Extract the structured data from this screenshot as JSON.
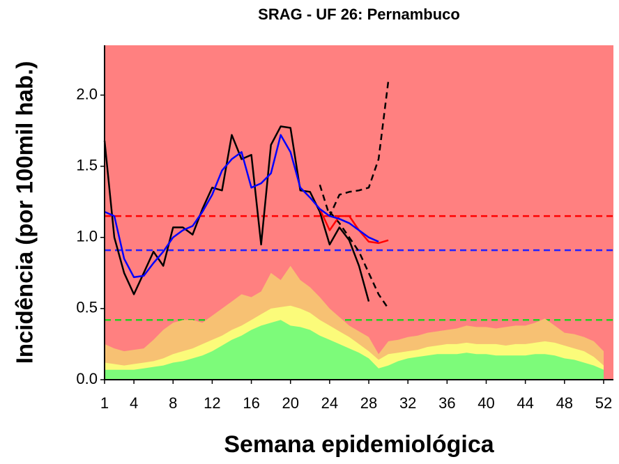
{
  "chart_data": {
    "type": "line",
    "title": "SRAG - UF 26: Pernambuco",
    "x_label": "Semana epidemiológica",
    "y_label": "Incidência (por 100mil hab.)",
    "background": "#ff8080",
    "xlim": [
      1,
      53
    ],
    "ylim": [
      0,
      2.35
    ],
    "xticks": [
      1,
      4,
      8,
      12,
      16,
      20,
      24,
      28,
      32,
      36,
      40,
      44,
      48,
      52
    ],
    "yticks": [
      {
        "value": 0,
        "label": "0.0"
      },
      0.5,
      {
        "value": 1,
        "label": "1.0"
      },
      1.5,
      {
        "value": 2,
        "label": "2.0"
      }
    ],
    "series": [
      {
        "style": "area",
        "color": "#f7c173",
        "x": [
          1,
          2,
          3,
          4,
          5,
          6,
          7,
          8,
          9,
          10,
          11,
          12,
          13,
          14,
          15,
          16,
          17,
          18,
          19,
          20,
          21,
          22,
          23,
          24,
          25,
          26,
          27,
          28,
          29,
          30,
          31,
          32,
          33,
          34,
          35,
          36,
          37,
          38,
          39,
          40,
          41,
          42,
          43,
          44,
          45,
          46,
          47,
          48,
          49,
          50,
          51,
          52
        ],
        "values": [
          0.25,
          0.22,
          0.2,
          0.21,
          0.22,
          0.28,
          0.35,
          0.4,
          0.42,
          0.42,
          0.4,
          0.45,
          0.5,
          0.55,
          0.6,
          0.58,
          0.62,
          0.75,
          0.7,
          0.8,
          0.7,
          0.65,
          0.58,
          0.5,
          0.44,
          0.38,
          0.34,
          0.3,
          0.18,
          0.27,
          0.28,
          0.3,
          0.31,
          0.33,
          0.34,
          0.35,
          0.36,
          0.38,
          0.37,
          0.37,
          0.36,
          0.37,
          0.38,
          0.38,
          0.4,
          0.43,
          0.38,
          0.33,
          0.32,
          0.3,
          0.27,
          0.2
        ]
      },
      {
        "style": "area",
        "color": "#fbfb7a",
        "x": [
          1,
          2,
          3,
          4,
          5,
          6,
          7,
          8,
          9,
          10,
          11,
          12,
          13,
          14,
          15,
          16,
          17,
          18,
          19,
          20,
          21,
          22,
          23,
          24,
          25,
          26,
          27,
          28,
          29,
          30,
          31,
          32,
          33,
          34,
          35,
          36,
          37,
          38,
          39,
          40,
          41,
          42,
          43,
          44,
          45,
          46,
          47,
          48,
          49,
          50,
          51,
          52
        ],
        "values": [
          0.12,
          0.11,
          0.1,
          0.11,
          0.12,
          0.13,
          0.15,
          0.18,
          0.2,
          0.22,
          0.25,
          0.28,
          0.31,
          0.35,
          0.38,
          0.42,
          0.46,
          0.5,
          0.51,
          0.52,
          0.5,
          0.47,
          0.42,
          0.38,
          0.34,
          0.3,
          0.25,
          0.2,
          0.14,
          0.18,
          0.19,
          0.2,
          0.21,
          0.23,
          0.24,
          0.25,
          0.25,
          0.26,
          0.25,
          0.25,
          0.25,
          0.24,
          0.25,
          0.25,
          0.26,
          0.27,
          0.26,
          0.24,
          0.22,
          0.2,
          0.16,
          0.1
        ]
      },
      {
        "style": "area",
        "color": "#7dfb7a",
        "x": [
          1,
          2,
          3,
          4,
          5,
          6,
          7,
          8,
          9,
          10,
          11,
          12,
          13,
          14,
          15,
          16,
          17,
          18,
          19,
          20,
          21,
          22,
          23,
          24,
          25,
          26,
          27,
          28,
          29,
          30,
          31,
          32,
          33,
          34,
          35,
          36,
          37,
          38,
          39,
          40,
          41,
          42,
          43,
          44,
          45,
          46,
          47,
          48,
          49,
          50,
          51,
          52
        ],
        "values": [
          0.07,
          0.07,
          0.07,
          0.07,
          0.08,
          0.09,
          0.1,
          0.12,
          0.13,
          0.15,
          0.17,
          0.2,
          0.24,
          0.28,
          0.31,
          0.35,
          0.38,
          0.4,
          0.42,
          0.38,
          0.37,
          0.35,
          0.31,
          0.28,
          0.25,
          0.22,
          0.19,
          0.15,
          0.08,
          0.1,
          0.13,
          0.15,
          0.16,
          0.17,
          0.18,
          0.18,
          0.18,
          0.19,
          0.18,
          0.18,
          0.17,
          0.17,
          0.17,
          0.17,
          0.18,
          0.18,
          0.17,
          0.15,
          0.14,
          0.12,
          0.1,
          0.07
        ]
      },
      {
        "style": "dashed",
        "color": "#000000",
        "x": [
          23,
          24,
          25,
          26,
          27,
          28,
          29,
          30
        ],
        "values": [
          1.37,
          1.15,
          1.3,
          1.32,
          1.33,
          1.35,
          1.55,
          2.1
        ]
      },
      {
        "style": "dashed",
        "color": "#000000",
        "x": [
          24,
          25,
          26,
          27,
          28,
          29,
          30
        ],
        "values": [
          1.18,
          1.1,
          1.0,
          0.9,
          0.75,
          0.6,
          0.5
        ]
      },
      {
        "style": "solid",
        "color": "#000000",
        "x": [
          1,
          2,
          3,
          4,
          5,
          6,
          7,
          8,
          9,
          10,
          11,
          12,
          13,
          14,
          15,
          16,
          17,
          18,
          19,
          20,
          21,
          22,
          23,
          24,
          25,
          26,
          27,
          28
        ],
        "values": [
          1.68,
          1.0,
          0.75,
          0.6,
          0.75,
          0.9,
          0.8,
          1.07,
          1.07,
          1.02,
          1.2,
          1.35,
          1.33,
          1.72,
          1.55,
          1.58,
          0.95,
          1.65,
          1.78,
          1.77,
          1.33,
          1.32,
          1.18,
          0.95,
          1.07,
          0.98,
          0.8,
          0.55
        ]
      },
      {
        "style": "solid",
        "color": "#ff0000",
        "x": [
          23,
          24,
          25,
          26,
          27,
          28,
          29,
          30
        ],
        "values": [
          1.2,
          1.05,
          1.15,
          1.15,
          1.05,
          0.97,
          0.96,
          0.98
        ]
      },
      {
        "style": "solid",
        "color": "#0000ff",
        "x": [
          1,
          2,
          3,
          4,
          5,
          6,
          7,
          8,
          9,
          10,
          11,
          12,
          13,
          14,
          15,
          16,
          17,
          18,
          19,
          20,
          21,
          22,
          23,
          24,
          25,
          26,
          27,
          28,
          29
        ],
        "values": [
          1.18,
          1.15,
          0.85,
          0.72,
          0.73,
          0.82,
          0.9,
          1.0,
          1.05,
          1.08,
          1.18,
          1.3,
          1.47,
          1.55,
          1.6,
          1.35,
          1.38,
          1.45,
          1.72,
          1.6,
          1.35,
          1.28,
          1.2,
          1.15,
          1.13,
          1.1,
          1.05,
          1.0,
          0.97
        ]
      }
    ],
    "reference_lines": [
      {
        "value": 1.15,
        "color": "#ff0000"
      },
      {
        "value": 0.91,
        "color": "#2020ff"
      },
      {
        "value": 0.42,
        "color": "#20d020"
      }
    ]
  }
}
